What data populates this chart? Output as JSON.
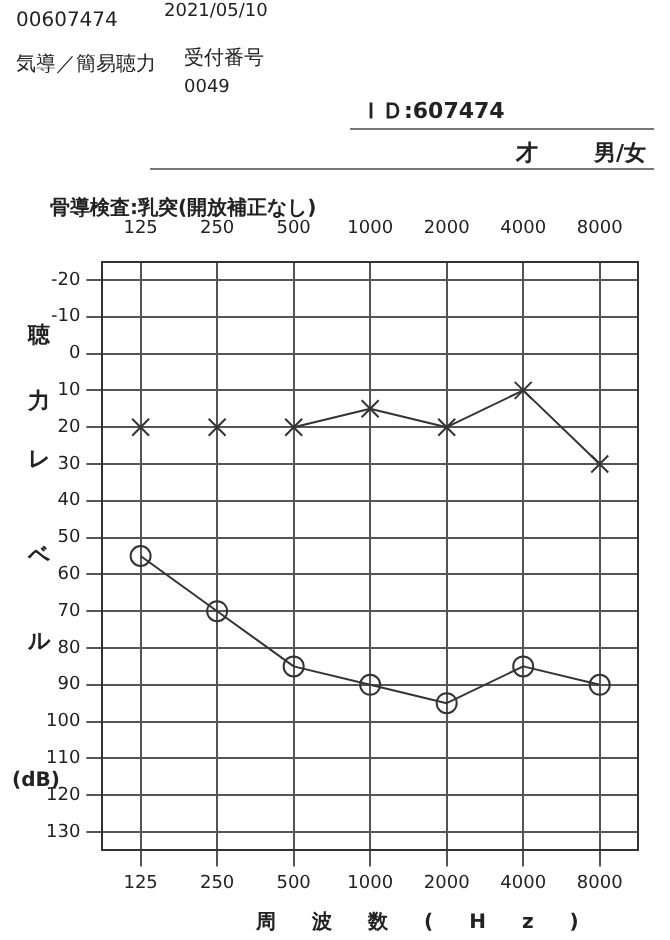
{
  "chart_data": {
    "type": "line",
    "title": "骨導検査:乳突(開放補正なし)",
    "xlabel": "周波数(Hz)",
    "ylabel": "聴力レベル",
    "annotations": [
      "00607474",
      "2021/05/10",
      "気導／簡易聴力",
      "受付番号",
      "0049",
      "ＩＤ:607474",
      "才",
      "男/女",
      "(dB)"
    ],
    "categories": [
      "125",
      "250",
      "500",
      "1000",
      "2000",
      "4000",
      "8000"
    ],
    "series": [
      {
        "type": "scatter",
        "color": "#333333",
        "marker": "cross",
        "values": [
          20,
          20,
          null,
          null,
          null,
          null,
          null
        ]
      },
      {
        "type": "line",
        "color": "#333333",
        "marker": "cross",
        "line_style": "solid",
        "values": [
          null,
          null,
          20,
          15,
          20,
          10,
          30
        ]
      },
      {
        "type": "line",
        "color": "#333333",
        "marker": "circle",
        "line_style": "solid",
        "values": [
          55,
          70,
          85,
          90,
          95,
          85,
          90
        ]
      }
    ],
    "ylim": [
      135,
      -25
    ],
    "yticks": [
      -20,
      -10,
      0,
      10,
      20,
      30,
      40,
      50,
      60,
      70,
      80,
      90,
      100,
      110,
      120,
      130
    ],
    "grid": true,
    "legend": false
  }
}
